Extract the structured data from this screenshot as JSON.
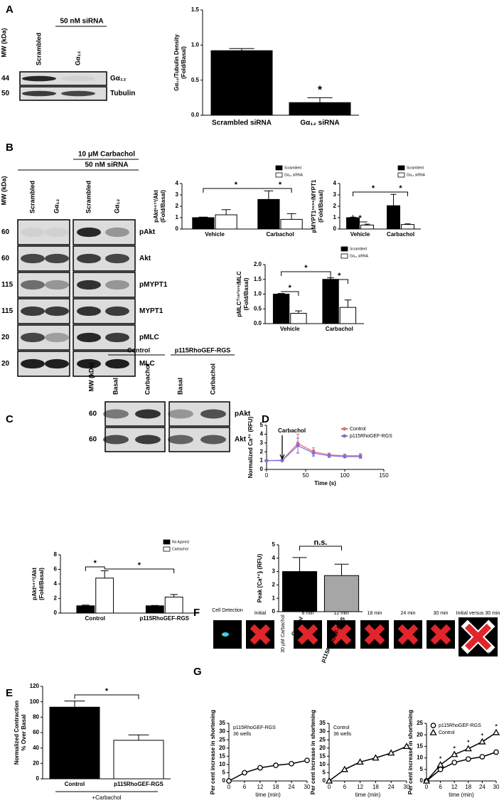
{
  "panel_labels": [
    "A",
    "B",
    "C",
    "D",
    "E",
    "F",
    "G"
  ],
  "blot_A": {
    "header": "50 nM siRNA",
    "mw_axis": "MW (kDa)",
    "lanes": [
      "Scrambled",
      "Gα₁₂"
    ],
    "rows": [
      {
        "mw": 44,
        "label": "Gα₁₂"
      },
      {
        "mw": 50,
        "label": "Tubulin"
      }
    ]
  },
  "blot_B": {
    "header_top": "10 μM Carbachol",
    "header": "50 nM siRNA",
    "mw_axis": "MW (kDa)",
    "lanes": [
      "Scrambled",
      "Gα₁₂",
      "Scrambled",
      "Gα₁₂"
    ],
    "rows": [
      {
        "mw": 60,
        "label": "pAkt"
      },
      {
        "mw": 60,
        "label": "Akt"
      },
      {
        "mw": 115,
        "label": "pMYPT1"
      },
      {
        "mw": 115,
        "label": "MYPT1"
      },
      {
        "mw": 20,
        "label": "pMLC"
      },
      {
        "mw": 20,
        "label": "MLC"
      }
    ]
  },
  "blot_C": {
    "header_left": "Control",
    "header_right": "p115RhoGEF-RGS",
    "mw_axis": "MW (kDa)",
    "lanes": [
      "Basal",
      "Carbachol",
      "Basal",
      "Carbachol"
    ],
    "rows": [
      {
        "mw": 60,
        "label": "pAkt"
      },
      {
        "mw": 60,
        "label": "Akt"
      }
    ]
  },
  "panel_F": {
    "labels": [
      "Cell Detection",
      "Initial",
      "6 min",
      "12 min",
      "18 min",
      "24 min",
      "30 min",
      "Initial versus 30 min"
    ],
    "side": "30 μM Carbachol"
  },
  "chart_data": [
    {
      "type": "bar",
      "ylabel": [
        "Gα₁₂/Tubulin Density",
        "(Fold/Basal)"
      ],
      "categories": [
        "Scrambled siRNA",
        "Gα₁₂ siRNA"
      ],
      "values": [
        0.92,
        0.18
      ],
      "errors": [
        0.03,
        0.07
      ],
      "colors": [
        "#000000",
        "#000000"
      ],
      "ylim": [
        0,
        1.5
      ],
      "yticks": [
        {
          "value": 0,
          "label": "0.0"
        },
        0.5,
        {
          "value": 1,
          "label": "1.0"
        },
        1.5
      ],
      "annotations": [
        "*"
      ]
    },
    {
      "type": "bar",
      "ylabel": [
        "pAktˢ⁴⁷³/Akt",
        "(Fold/Basal)"
      ],
      "categories": [
        "Vehicle",
        "Carbachol"
      ],
      "series": [
        {
          "name": "Scrambled",
          "color": "#000000",
          "values": [
            1.0,
            2.6
          ],
          "errors": [
            0.05,
            0.75
          ]
        },
        {
          "name": "Gα₁₂ siRNA",
          "color": "#ffffff",
          "values": [
            1.25,
            0.85
          ],
          "errors": [
            0.45,
            0.5
          ]
        }
      ],
      "ylim": [
        0,
        4
      ],
      "yticks": [
        0,
        1,
        2,
        3,
        4
      ],
      "legend": "top-right",
      "annotations": [
        "*",
        "*"
      ]
    },
    {
      "type": "bar",
      "ylabel": [
        "pMYPT1ˢ⁶⁹⁶/MYPT1",
        "(Fold/Basal)"
      ],
      "categories": [
        "Vehicle",
        "Carbachol"
      ],
      "series": [
        {
          "name": "Scrambled",
          "color": "#000000",
          "values": [
            1.0,
            2.05
          ],
          "errors": [
            0.05,
            1.0
          ]
        },
        {
          "name": "Gα₁₂ siRNA",
          "color": "#ffffff",
          "values": [
            0.35,
            0.4
          ],
          "errors": [
            0.08,
            0.05
          ]
        }
      ],
      "ylim": [
        0,
        4
      ],
      "yticks": [
        0,
        1,
        2,
        3,
        4
      ],
      "legend": "top-right",
      "annotations": [
        "*",
        "*",
        "*"
      ]
    },
    {
      "type": "bar",
      "ylabel": [
        "pMLCᵀ¹⁸ᐟˢ¹⁹/MLC",
        "(Fold/Basal)"
      ],
      "categories": [
        "Vehicle",
        "Carbachol"
      ],
      "series": [
        {
          "name": "Scrambled",
          "color": "#000000",
          "values": [
            1.0,
            1.5
          ],
          "errors": [
            0.02,
            0.05
          ]
        },
        {
          "name": "Gα₁₂ siRNA",
          "color": "#ffffff",
          "values": [
            0.35,
            0.55
          ],
          "errors": [
            0.08,
            0.25
          ]
        }
      ],
      "ylim": [
        0,
        2
      ],
      "yticks": [
        {
          "value": 0,
          "label": "0.0"
        },
        0.5,
        {
          "value": 1,
          "label": "1.0"
        },
        1.5,
        {
          "value": 2,
          "label": "2.0"
        }
      ],
      "legend": "top-right",
      "annotations": [
        "*",
        "*",
        "*"
      ]
    },
    {
      "type": "bar",
      "ylabel": [
        "pAktˢ⁴⁷³/Akt",
        "(Fold/Basal)"
      ],
      "categories": [
        "Control",
        "p115RhoGEF-RGS"
      ],
      "series": [
        {
          "name": "No Agonist",
          "color": "#000000",
          "values": [
            1.0,
            1.0
          ],
          "errors": [
            0.1,
            0.05
          ]
        },
        {
          "name": "Carbachol",
          "color": "#ffffff",
          "values": [
            4.8,
            2.2
          ],
          "errors": [
            1.0,
            0.35
          ]
        }
      ],
      "ylim": [
        0,
        8
      ],
      "yticks": [
        0,
        2,
        4,
        6,
        8
      ],
      "legend": "top-right",
      "annotations": [
        "*",
        "*"
      ]
    },
    {
      "type": "line",
      "ylabel": [
        "Normalized Ca²⁺ (RFU)"
      ],
      "xlabel": "Time (s)",
      "x": [
        0,
        20,
        40,
        60,
        80,
        100,
        120
      ],
      "series": [
        {
          "name": "Control",
          "color": "#f06a6a",
          "values": [
            1.0,
            1.05,
            2.95,
            2.0,
            1.65,
            1.55,
            1.55
          ],
          "errors": [
            0.1,
            0.1,
            1.05,
            0.45,
            0.2,
            0.2,
            0.25
          ]
        },
        {
          "name": "p115RhoGEF-RGS",
          "color": "#7b6ee0",
          "values": [
            1.0,
            1.0,
            2.7,
            1.85,
            1.55,
            1.45,
            1.45
          ],
          "errors": [
            0.1,
            0.1,
            0.85,
            0.35,
            0.2,
            0.15,
            0.2
          ]
        }
      ],
      "xlim": [
        0,
        150
      ],
      "xticks": [
        0,
        50,
        100,
        150
      ],
      "ylim": [
        0,
        5
      ],
      "yticks": [
        0,
        1,
        2,
        3,
        4,
        5
      ],
      "legend": "top-right",
      "arrow": {
        "x": 20,
        "text": "Carbachol"
      }
    },
    {
      "type": "bar",
      "ylabel": [
        "Peak [Ca²⁺]ᵢ (RFU)"
      ],
      "categories": [
        "Control",
        "p115RhoGEF-RGS"
      ],
      "values": [
        3.0,
        2.7
      ],
      "errors": [
        1.05,
        0.85
      ],
      "colors": [
        "#000000",
        "#a6a6a6"
      ],
      "ylim": [
        0,
        5
      ],
      "yticks": [
        0,
        1,
        2,
        3,
        4,
        5
      ],
      "annotations": [
        "n.s."
      ]
    },
    {
      "type": "bar",
      "ylabel": [
        "Normalized Contraction",
        "% Over Basal"
      ],
      "categories": [
        "Control",
        "p115RhoGEF-RGS"
      ],
      "xlabel": "+Carbachol",
      "values": [
        93,
        50
      ],
      "errors": [
        8,
        7
      ],
      "colors": [
        "#000000",
        "#ffffff"
      ],
      "ylim": [
        0,
        120
      ],
      "yticks": [
        0,
        20,
        40,
        60,
        80,
        100,
        120
      ],
      "annotations": [
        "*"
      ]
    },
    {
      "type": "line",
      "ylabel": [
        "Per cent increase in shortening"
      ],
      "xlabel": "time (min)",
      "x": [
        0,
        6,
        12,
        18,
        24,
        30
      ],
      "values": [
        0,
        5,
        8,
        9.5,
        10.5,
        12.5
      ],
      "color": "#000000",
      "marker": "circle",
      "note": [
        "p115RhoGEF-RGS",
        "36 wells"
      ],
      "xlim": [
        0,
        30
      ],
      "xticks": [
        0,
        6,
        12,
        18,
        24,
        30
      ],
      "ylim": [
        0,
        35
      ],
      "yticks": [
        0,
        5,
        10,
        15,
        20,
        25,
        30,
        35
      ]
    },
    {
      "type": "line",
      "ylabel": [
        "Per cent increase in shortening"
      ],
      "xlabel": "time (min)",
      "x": [
        0,
        6,
        12,
        18,
        24,
        30
      ],
      "values": [
        0,
        7,
        11.5,
        14,
        17,
        21
      ],
      "color": "#000000",
      "marker": "triangle",
      "note": [
        "Control",
        "36 wells"
      ],
      "xlim": [
        0,
        30
      ],
      "xticks": [
        0,
        6,
        12,
        18,
        24,
        30
      ],
      "ylim": [
        0,
        35
      ],
      "yticks": [
        0,
        5,
        10,
        15,
        20,
        25,
        30,
        35
      ]
    },
    {
      "type": "line",
      "ylabel": [
        "Per cent increase in shortening"
      ],
      "xlabel": "time (min)",
      "x": [
        0,
        6,
        12,
        18,
        24,
        30
      ],
      "series": [
        {
          "name": "p115RhoGEF-RGS",
          "color": "#000000",
          "marker": "circle",
          "values": [
            0,
            5,
            8,
            9.5,
            10.5,
            12.5
          ]
        },
        {
          "name": "Control",
          "color": "#000000",
          "marker": "triangle",
          "values": [
            0,
            7,
            11.5,
            14,
            17,
            21
          ]
        }
      ],
      "legend": "top-left",
      "annotations": [
        {
          "x": 6,
          "text": "*"
        },
        {
          "x": 12,
          "text": "*"
        },
        {
          "x": 18,
          "text": "*"
        },
        {
          "x": 24,
          "text": "*"
        },
        {
          "x": 30,
          "text": "*"
        }
      ],
      "xlim": [
        0,
        30
      ],
      "xticks": [
        0,
        6,
        12,
        18,
        24,
        30
      ],
      "ylim": [
        0,
        25
      ],
      "yticks": [
        0,
        5,
        10,
        15,
        20,
        25
      ]
    }
  ]
}
